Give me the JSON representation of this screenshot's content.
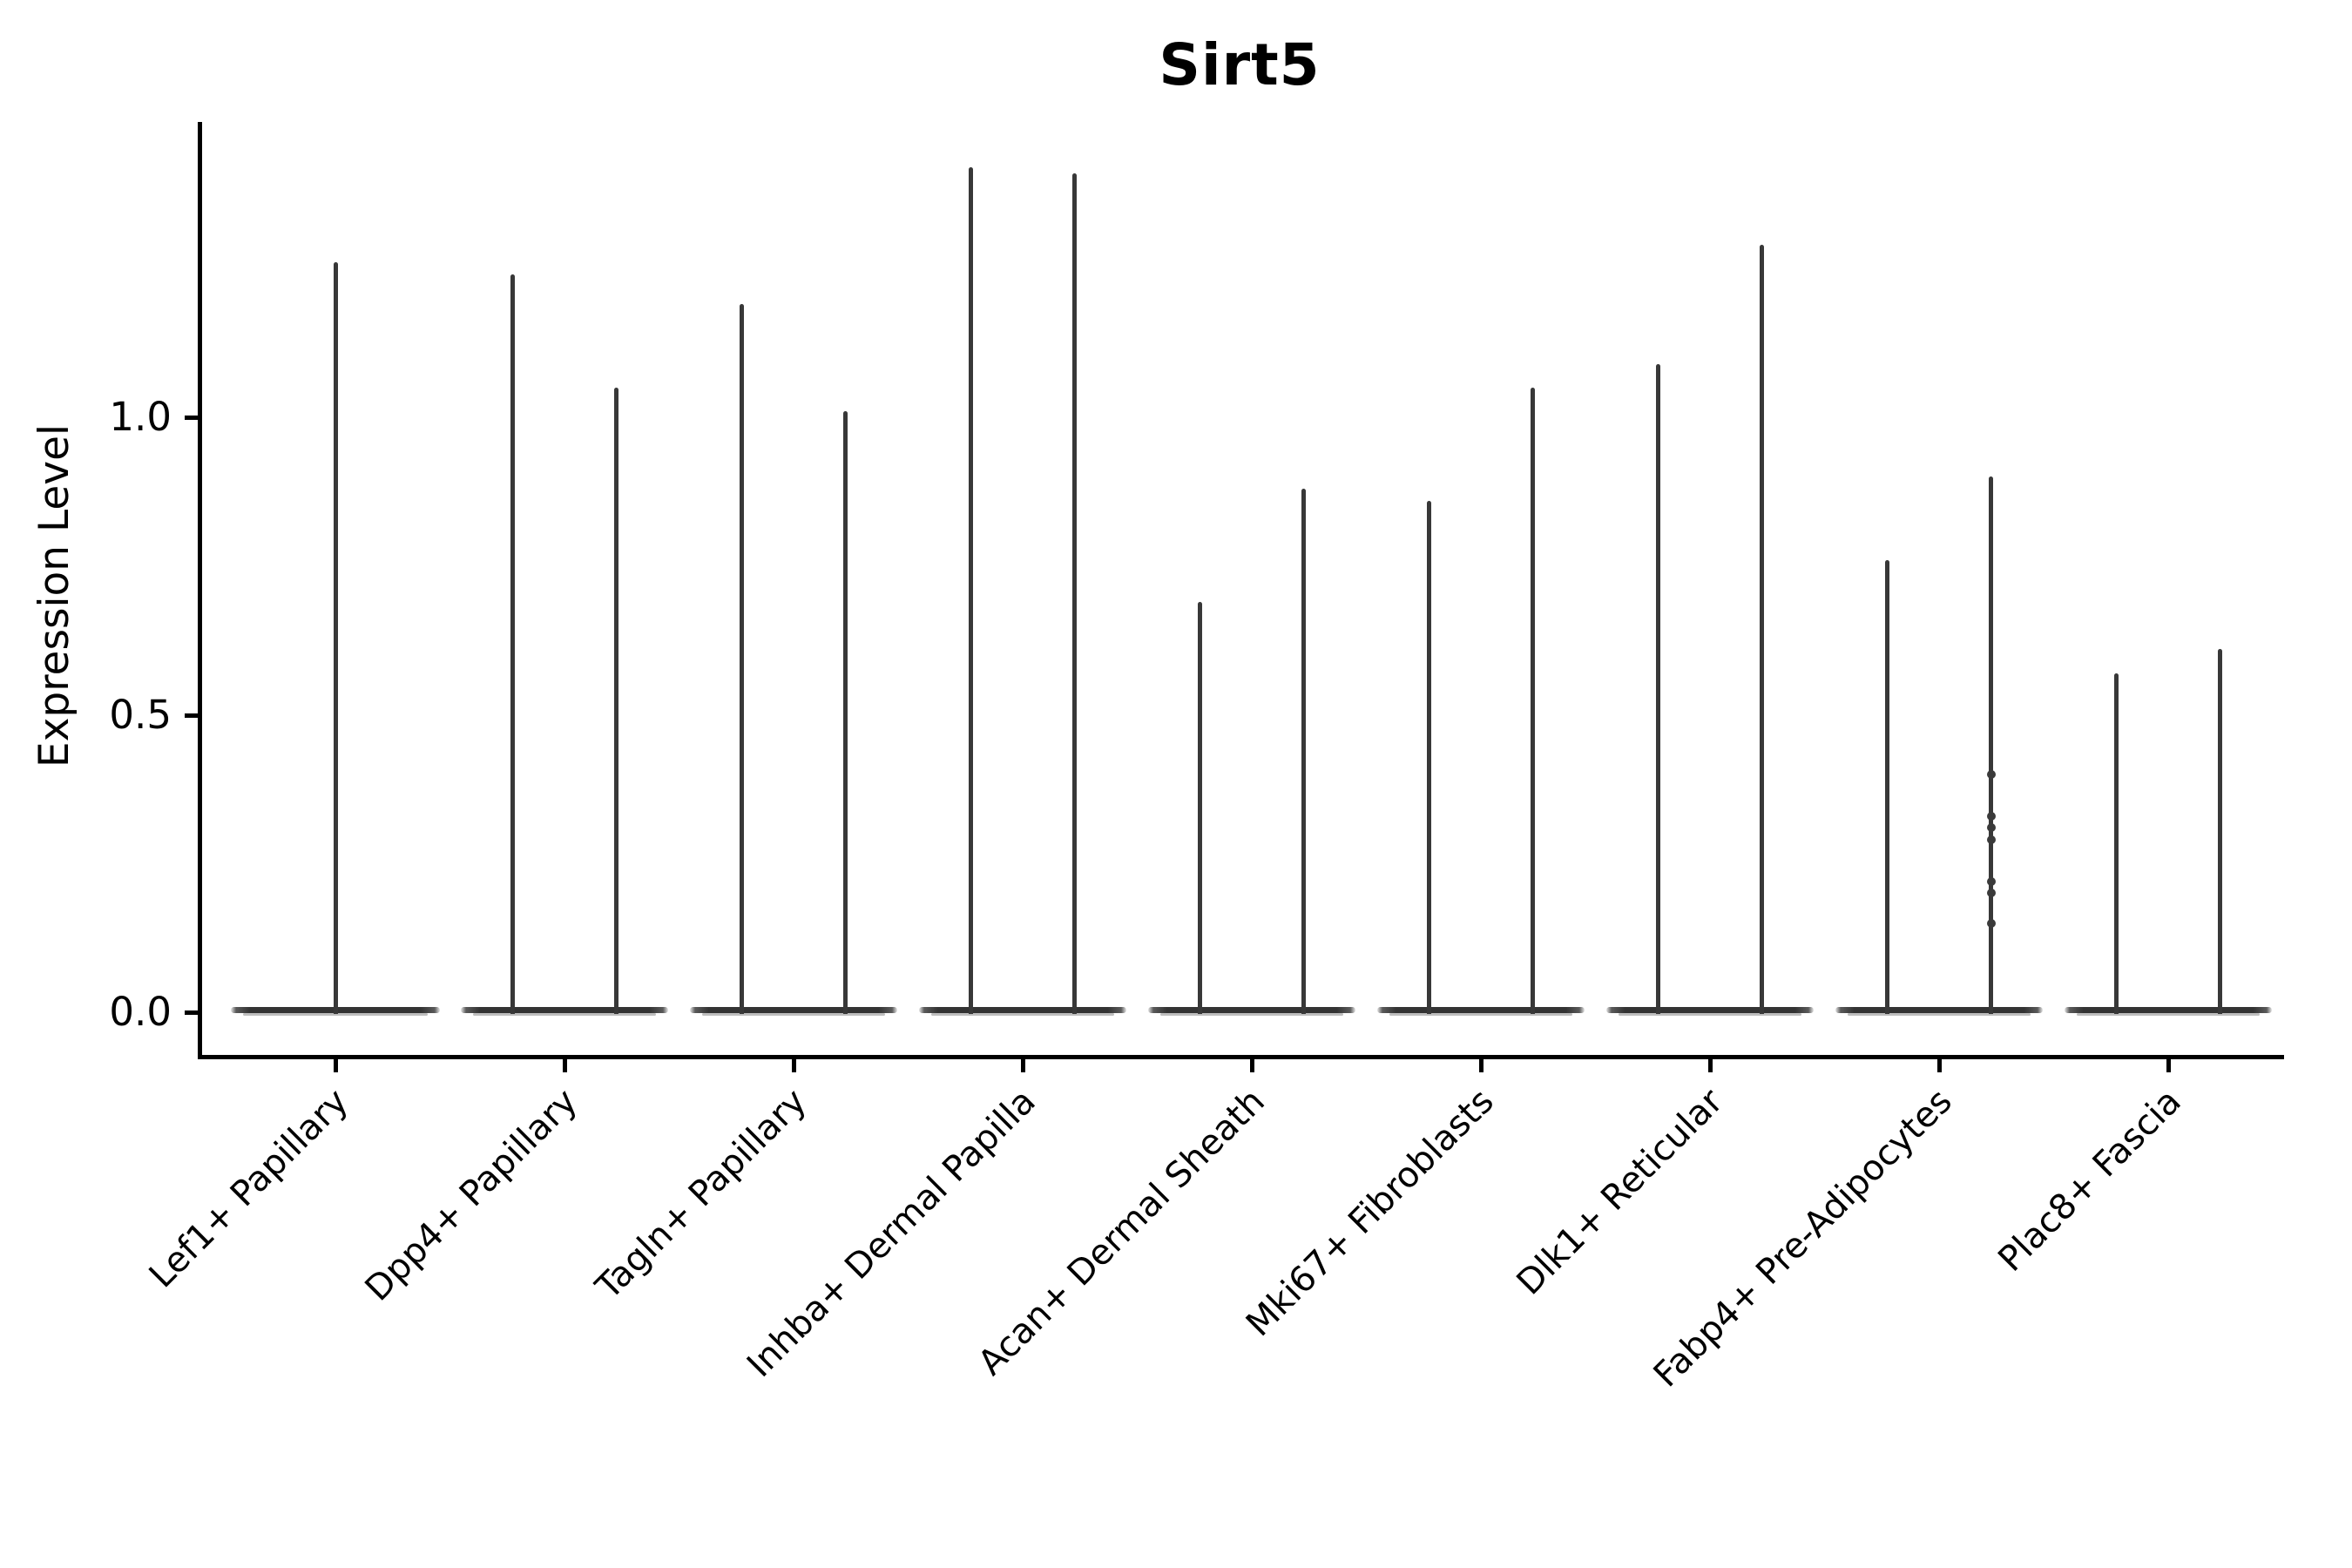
{
  "figure": {
    "title": "Sirt5",
    "y_axis_label": "Expression Level"
  },
  "colors": {
    "axis": "#000000",
    "violin_ink": "#383838",
    "background": "#ffffff"
  },
  "chart_data": {
    "type": "violin",
    "title": "Sirt5",
    "xlabel": "",
    "ylabel": "Expression Level",
    "ylim": [
      0,
      1.5
    ],
    "yticks": [
      {
        "label": "0.0",
        "value": 0.0
      },
      {
        "label": "0.5",
        "value": 0.5
      },
      {
        "label": "1.0",
        "value": 1.0
      }
    ],
    "grid": false,
    "legend": "none",
    "description": "Violin plot of Sirt5 expression per fibroblast cluster; each violin collapses to a flat density pancake at 0 with a thin spike up to the maximum expressing cell. All categories except the first contain two side-by-side violins.",
    "categories": [
      "Lef1+ Papillary",
      "Dpp4+ Papillary",
      "Tagln+ Papillary",
      "Inhba+ Dermal Papilla",
      "Acan+ Dermal Sheath",
      "Mki67+ Fibroblasts",
      "Dlk1+ Reticular",
      "Fabp4+ Pre-Adipocytes",
      "Plac8+ Fascia"
    ],
    "violins": [
      {
        "category": "Lef1+ Papillary",
        "spikes": [
          {
            "max": 1.26
          }
        ]
      },
      {
        "category": "Dpp4+ Papillary",
        "spikes": [
          {
            "max": 1.24
          },
          {
            "max": 1.05
          }
        ]
      },
      {
        "category": "Tagln+ Papillary",
        "spikes": [
          {
            "max": 1.19
          },
          {
            "max": 1.01
          }
        ]
      },
      {
        "category": "Inhba+ Dermal Papilla",
        "spikes": [
          {
            "max": 1.42
          },
          {
            "max": 1.41
          }
        ]
      },
      {
        "category": "Acan+ Dermal Sheath",
        "spikes": [
          {
            "max": 0.69
          },
          {
            "max": 0.88
          }
        ]
      },
      {
        "category": "Mki67+ Fibroblasts",
        "spikes": [
          {
            "max": 0.86
          },
          {
            "max": 1.05
          }
        ]
      },
      {
        "category": "Dlk1+ Reticular",
        "spikes": [
          {
            "max": 1.09
          },
          {
            "max": 1.29
          }
        ]
      },
      {
        "category": "Fabp4+ Pre-Adipocytes",
        "spikes": [
          {
            "max": 0.76
          },
          {
            "max": 0.9,
            "points": [
              0.4,
              0.33,
              0.31,
              0.29,
              0.22,
              0.2,
              0.15
            ]
          }
        ]
      },
      {
        "category": "Plac8+ Fascia",
        "spikes": [
          {
            "max": 0.57
          },
          {
            "max": 0.61
          }
        ]
      }
    ],
    "density_pancake_at_zero": true
  }
}
